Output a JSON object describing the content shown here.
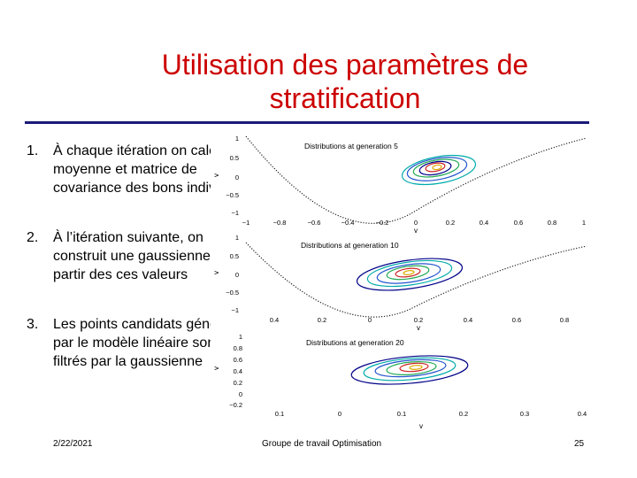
{
  "slide": {
    "title_line1": "Utilisation des paramètres de",
    "title_line2": "stratification",
    "accent_color": "#cc0000",
    "rule_color": "#1a1a7a",
    "steps": [
      {
        "num": "1.",
        "text": "À chaque itération on calcule la moyenne et matrice de covariance des bons individus"
      },
      {
        "num": "2.",
        "text": "À l’itération suivante, on construit une gaussienne à partir des ces valeurs"
      },
      {
        "num": "3.",
        "text": "Les points candidats générés par le modèle linéaire sont filtrés par la gaussienne"
      }
    ]
  },
  "figure": {
    "panels": [
      {
        "title": "Distributions at generation 5",
        "ylabel": "v",
        "ylabel_sub": "3",
        "xlabel": "v",
        "xlabel_sub": "1",
        "yticks": [
          "1",
          "0.5",
          "0",
          "−0.5",
          "−1"
        ],
        "xticks": [
          "−1",
          "−0.8",
          "−0.6",
          "−0.4",
          "−0.2",
          "0",
          "0.2",
          "0.4",
          "0.6",
          "0.8",
          "1"
        ]
      },
      {
        "title": "Distributions at generation 10",
        "ylabel": "v",
        "ylabel_sub": "3",
        "xlabel": "v",
        "xlabel_sub": "1",
        "yticks": [
          "1",
          "0.5",
          "0",
          "−0.5",
          "−1"
        ],
        "xticks": [
          "0.4",
          "0.2",
          "0",
          "0.2",
          "0.4",
          "0.6",
          "0.8"
        ]
      },
      {
        "title": "Distributions at generation 20",
        "ylabel": "v",
        "ylabel_sub": "3",
        "xlabel": "v",
        "xlabel_sub": "1",
        "yticks": [
          "1",
          "0.8",
          "0.6",
          "0.4",
          "0.2",
          "0",
          "−0.2"
        ],
        "xticks": [
          "0.1",
          "0",
          "0.1",
          "0.2",
          "0.3",
          "0.4"
        ]
      }
    ]
  },
  "footer": {
    "date": "2/22/2021",
    "group": "Groupe de travail Optimisation",
    "page": "25"
  }
}
